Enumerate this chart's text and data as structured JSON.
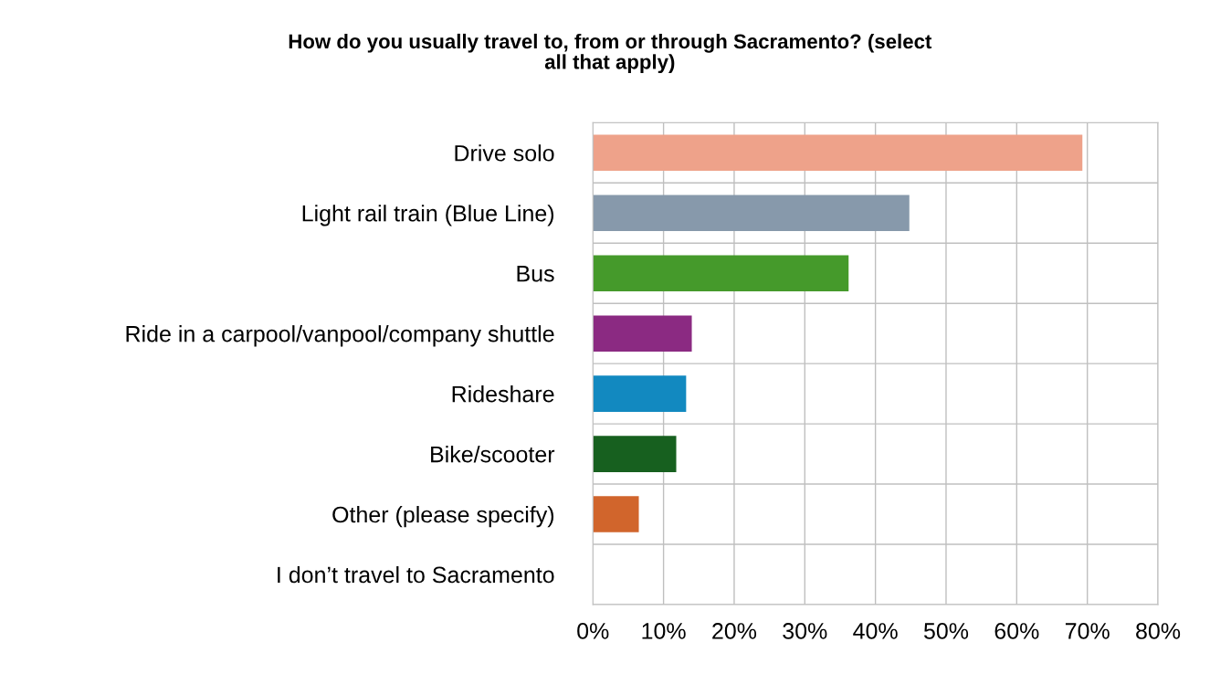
{
  "chart_data": {
    "type": "bar",
    "orientation": "horizontal",
    "title": "How do you usually travel to, from or through Sacramento? (select all that apply)",
    "categories": [
      "Drive solo",
      "Light rail train (Blue Line)",
      "Bus",
      "Ride in a carpool/vanpool/company shuttle",
      "Rideshare",
      "Bike/scooter",
      "Other (please specify)",
      "I don’t travel to Sacramento"
    ],
    "values": [
      69.3,
      44.8,
      36.2,
      14.0,
      13.2,
      11.8,
      6.5,
      0
    ],
    "colors": [
      "#eea28a",
      "#8799ab",
      "#459a2b",
      "#8b2a82",
      "#1289c0",
      "#17601f",
      "#d1652c",
      "#999999"
    ],
    "xlim": [
      0,
      80
    ],
    "xticks": [
      {
        "value": 0,
        "label": "0%"
      },
      {
        "value": 10,
        "label": "10%"
      },
      {
        "value": 20,
        "label": "20%"
      },
      {
        "value": 30,
        "label": "30%"
      },
      {
        "value": 40,
        "label": "40%"
      },
      {
        "value": 50,
        "label": "50%"
      },
      {
        "value": 60,
        "label": "60%"
      },
      {
        "value": 70,
        "label": "70%"
      },
      {
        "value": 80,
        "label": "80%"
      }
    ],
    "grid": true,
    "legend": false
  }
}
